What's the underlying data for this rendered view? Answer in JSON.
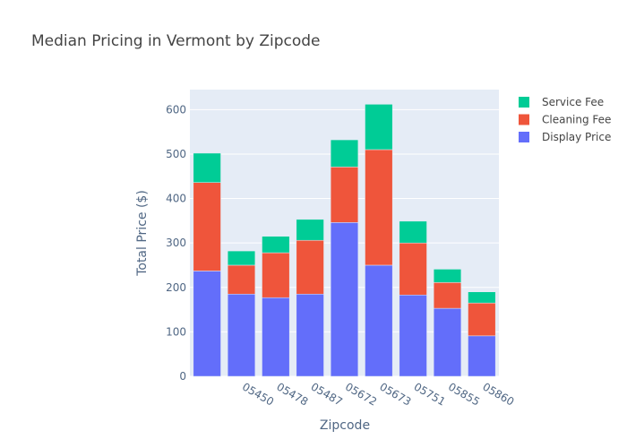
{
  "chart_data": {
    "type": "bar",
    "barmode": "stack",
    "title": "Median Pricing in Vermont by Zipcode",
    "xlabel": "Zipcode",
    "ylabel": "Total Price ($)",
    "ylim": [
      0,
      645
    ],
    "yticks": [
      0,
      100,
      200,
      300,
      400,
      500,
      600
    ],
    "grid": true,
    "legend_position": "top-right",
    "categories": [
      "",
      "05450",
      "05478",
      "05487",
      "05672",
      "05673",
      "05751",
      "05855",
      "05860"
    ],
    "series": [
      {
        "name": "Display Price",
        "color": "#636efa",
        "values": [
          237,
          185,
          177,
          185,
          346,
          250,
          183,
          153,
          91
        ]
      },
      {
        "name": "Cleaning Fee",
        "color": "#ef553b",
        "values": [
          199,
          65,
          101,
          121,
          125,
          260,
          117,
          58,
          74
        ]
      },
      {
        "name": "Service Fee",
        "color": "#00cc96",
        "values": [
          66,
          32,
          37,
          47,
          61,
          102,
          49,
          30,
          25
        ]
      }
    ]
  }
}
